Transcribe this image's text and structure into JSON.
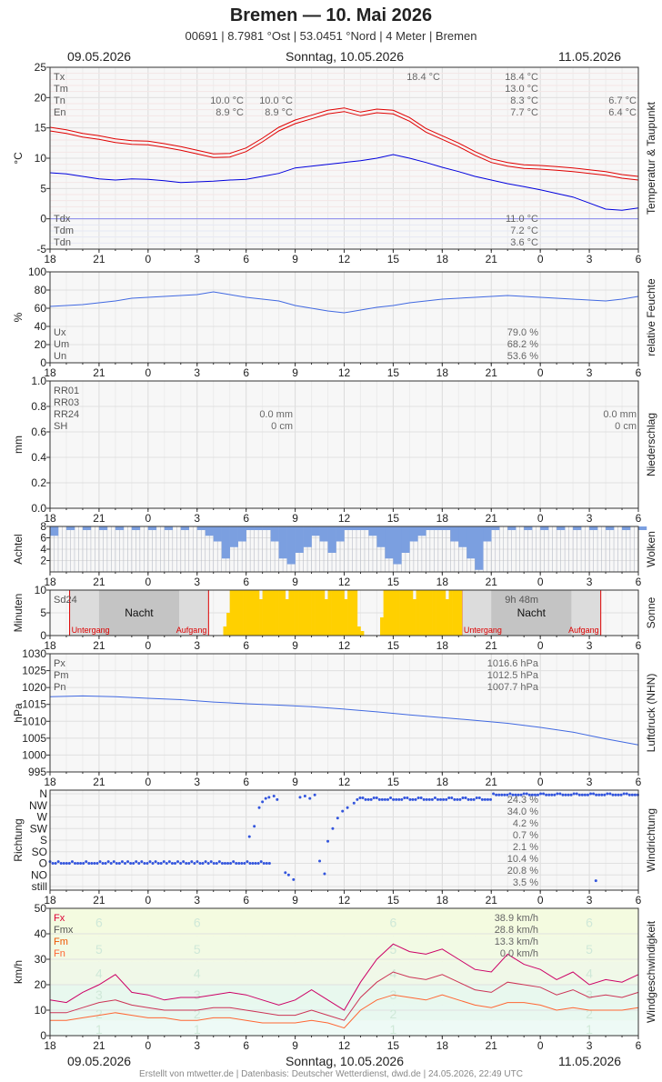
{
  "header": {
    "title": "Bremen  —  10. Mai 2026",
    "subtitle": "00691  |  8.7981 °Ost  |  53.0451 °Nord  |  4 Meter  |  Bremen",
    "date_left": "09.05.2026",
    "date_center": "Sonntag, 10.05.2026",
    "date_right": "11.05.2026"
  },
  "footer": "Erstellt von mtwetter.de | Datenbasis: Deutscher Wetterdienst, dwd.de | 24.05.2026, 22:49 UTC",
  "x_axis": {
    "tick_labels": [
      "18",
      "21",
      "0",
      "3",
      "6",
      "9",
      "12",
      "15",
      "18",
      "21",
      "0",
      "3",
      "6"
    ],
    "start_hour": 18,
    "end_hour": 54
  },
  "colors": {
    "temperature": "#e00000",
    "dewpoint": "#0000dd",
    "humidity": "#4169e1",
    "clouds": "#7b9fe0",
    "sun": "#ffd000",
    "pressure": "#4169e1",
    "wind_dir": "#3355dd",
    "gust_max": "#cc0066",
    "gust_mean": "#cc3355",
    "wind_mean": "#ff6633"
  },
  "chart_data": [
    {
      "id": "temp",
      "type": "line",
      "right_label": "Temperatur & Taupunkt",
      "ylabel": "°C",
      "ylim": [
        -5,
        25
      ],
      "yticks": [
        -5,
        0,
        5,
        10,
        15,
        20,
        25
      ],
      "legend": [
        "Tx",
        "Tm",
        "Tn",
        "En"
      ],
      "legend2": [
        "Tdx",
        "Tdm",
        "Tdn"
      ],
      "annotations": [
        {
          "text": "10.0 °C",
          "col": "day1a",
          "row": 2
        },
        {
          "text": "8.9 °C",
          "col": "day1a",
          "row": 3
        },
        {
          "text": "10.0 °C",
          "col": "day1b",
          "row": 2
        },
        {
          "text": "8.9 °C",
          "col": "day1b",
          "row": 3
        },
        {
          "text": "18.4 °C",
          "col": "day2max",
          "row": 0
        },
        {
          "text": "18.4 °C",
          "col": "day2",
          "row": 0
        },
        {
          "text": "13.0 °C",
          "col": "day2",
          "row": 1
        },
        {
          "text": "8.3 °C",
          "col": "day2",
          "row": 2
        },
        {
          "text": "7.7 °C",
          "col": "day2",
          "row": 3
        },
        {
          "text": "6.7 °C",
          "col": "day3",
          "row": 2
        },
        {
          "text": "6.4 °C",
          "col": "day3",
          "row": 3
        },
        {
          "text": "11.0 °C",
          "col": "day2",
          "row": 0,
          "bottom": true
        },
        {
          "text": "7.2 °C",
          "col": "day2",
          "row": 1,
          "bottom": true
        },
        {
          "text": "3.6 °C",
          "col": "day2",
          "row": 2,
          "bottom": true
        }
      ],
      "series": [
        {
          "name": "T",
          "x": [
            18,
            19,
            20,
            21,
            22,
            23,
            24,
            25,
            26,
            27,
            28,
            29,
            30,
            31,
            32,
            33,
            34,
            35,
            36,
            37,
            38,
            39,
            40,
            41,
            42,
            43,
            44,
            45,
            46,
            47,
            48,
            49,
            50,
            51,
            52,
            53,
            54
          ],
          "values": [
            14.8,
            14.4,
            13.8,
            13.4,
            12.9,
            12.6,
            12.5,
            12.1,
            11.6,
            11.0,
            10.4,
            10.5,
            11.4,
            13.0,
            14.8,
            16.0,
            16.8,
            17.6,
            18.0,
            17.3,
            17.8,
            17.6,
            16.4,
            14.6,
            13.4,
            12.2,
            10.8,
            9.6,
            9.0,
            8.6,
            8.5,
            8.3,
            8.1,
            7.8,
            7.5,
            7.0,
            6.7
          ]
        },
        {
          "name": "Td",
          "x": [
            18,
            19,
            20,
            21,
            22,
            23,
            24,
            25,
            26,
            27,
            28,
            29,
            30,
            31,
            32,
            33,
            34,
            35,
            36,
            37,
            38,
            39,
            40,
            41,
            42,
            43,
            44,
            45,
            46,
            47,
            48,
            49,
            50,
            51,
            52,
            53,
            54
          ],
          "values": [
            7.6,
            7.4,
            7.0,
            6.6,
            6.4,
            6.6,
            6.5,
            6.3,
            6.0,
            6.1,
            6.2,
            6.4,
            6.5,
            7.0,
            7.5,
            8.4,
            8.7,
            9.0,
            9.3,
            9.6,
            10.0,
            10.6,
            10.0,
            9.3,
            8.5,
            7.8,
            7.0,
            6.4,
            5.8,
            5.3,
            4.8,
            4.2,
            3.6,
            2.6,
            1.6,
            1.4,
            1.8
          ]
        }
      ]
    },
    {
      "id": "hum",
      "type": "line",
      "right_label": "relative Feuchte",
      "ylabel": "%",
      "ylim": [
        0,
        100
      ],
      "yticks": [
        0,
        20,
        40,
        60,
        80,
        100
      ],
      "legend": [
        "Ux",
        "Um",
        "Un"
      ],
      "annotations": [
        {
          "text": "79.0 %",
          "col": "day2",
          "row": 0,
          "bottom": true
        },
        {
          "text": "68.2 %",
          "col": "day2",
          "row": 1,
          "bottom": true
        },
        {
          "text": "53.6 %",
          "col": "day2",
          "row": 2,
          "bottom": true
        }
      ],
      "series": [
        {
          "name": "U",
          "x": [
            18,
            19,
            20,
            21,
            22,
            23,
            24,
            25,
            26,
            27,
            28,
            29,
            30,
            31,
            32,
            33,
            34,
            35,
            36,
            37,
            38,
            39,
            40,
            41,
            42,
            43,
            44,
            45,
            46,
            47,
            48,
            49,
            50,
            51,
            52,
            53,
            54
          ],
          "values": [
            62,
            63,
            64,
            66,
            68,
            71,
            72,
            73,
            74,
            75,
            78,
            75,
            72,
            70,
            68,
            63,
            60,
            57,
            55,
            58,
            61,
            63,
            66,
            68,
            70,
            71,
            72,
            73,
            74,
            73,
            72,
            71,
            70,
            69,
            68,
            70,
            73
          ]
        }
      ]
    },
    {
      "id": "rain",
      "type": "bar",
      "right_label": "Niederschlag",
      "ylabel": "mm",
      "ylim": [
        0,
        1
      ],
      "yticks": [
        0.0,
        0.2,
        0.4,
        0.6,
        0.8,
        1.0
      ],
      "legend": [
        "RR01",
        "RR03",
        "RR24",
        "SH"
      ],
      "annotations": [
        {
          "text": "0.0 mm",
          "col": "day1b",
          "row": 2
        },
        {
          "text": "0 cm",
          "col": "day1b",
          "row": 3
        },
        {
          "text": "0.0 mm",
          "col": "day3",
          "row": 2
        },
        {
          "text": "0 cm",
          "col": "day3",
          "row": 3
        }
      ]
    },
    {
      "id": "cloud",
      "type": "bar",
      "right_label": "Wolken",
      "ylabel": "Achtel",
      "ylim": [
        0,
        8
      ],
      "yticks": [
        2,
        4,
        6,
        8
      ],
      "x": [
        18.0,
        19.0,
        20.0,
        21.0,
        22.0,
        23.0,
        24.0,
        25.0,
        26.0,
        27.0,
        27.5,
        28.0,
        28.5,
        29.0,
        29.5,
        30.0,
        30.5,
        31.0,
        31.5,
        32.0,
        32.5,
        33.0,
        33.5,
        34.0,
        34.5,
        35.0,
        35.5,
        36.0,
        36.5,
        37.0,
        37.5,
        38.0,
        38.5,
        39.0,
        39.5,
        40.0,
        40.5,
        41.0,
        41.5,
        42.0,
        42.5,
        43.0,
        43.5,
        44.0,
        44.5,
        45.0,
        46.0,
        47.0,
        48.0,
        49.0,
        50.0,
        51.0,
        52.0,
        53.0,
        54.0
      ],
      "values": [
        7,
        8,
        8,
        8,
        8,
        8,
        8,
        8,
        8,
        8,
        7,
        6,
        3,
        5,
        6,
        8,
        8,
        8,
        6,
        3,
        2,
        4,
        5,
        7,
        6,
        4,
        6,
        8,
        8,
        8,
        7,
        5,
        3,
        2,
        4,
        6,
        7,
        8,
        8,
        8,
        6,
        5,
        3,
        1,
        6,
        8,
        8,
        8,
        8,
        8,
        8,
        8,
        8,
        8,
        8
      ]
    },
    {
      "id": "sun",
      "type": "bar",
      "right_label": "Sonne",
      "ylabel": "Minuten",
      "ylim": [
        0,
        10
      ],
      "yticks": [
        0,
        5,
        10
      ],
      "legend": [
        "Sd24"
      ],
      "night_label": "Nacht",
      "sunset_label": "Untergang",
      "sunrise_label": "Aufgang",
      "total": "9h 48m",
      "sun_x": [
        28.6,
        28.8,
        29.0,
        29.2,
        29.4,
        29.6,
        29.8,
        30.0,
        30.2,
        30.4,
        30.6,
        30.8,
        31.0,
        31.2,
        31.4,
        31.6,
        31.8,
        32.0,
        32.2,
        32.4,
        32.6,
        32.8,
        33.0,
        33.2,
        33.4,
        33.6,
        33.8,
        34.0,
        34.2,
        34.4,
        34.6,
        34.8,
        35.0,
        35.2,
        35.4,
        35.6,
        35.8,
        36.0,
        36.2,
        36.4,
        36.6,
        36.8,
        37.0,
        38.2,
        38.4,
        38.6,
        38.8,
        39.0,
        39.2,
        39.4,
        39.6,
        39.8,
        40.0,
        40.2,
        40.4,
        40.6,
        40.8,
        41.0,
        41.2,
        41.4,
        41.6,
        41.8,
        42.0,
        42.2,
        42.4,
        42.6,
        42.8,
        43.0
      ],
      "sun_values": [
        2,
        5,
        10,
        10,
        10,
        10,
        10,
        10,
        10,
        10,
        10,
        8,
        10,
        10,
        10,
        10,
        10,
        10,
        10,
        8,
        10,
        10,
        10,
        10,
        10,
        10,
        10,
        10,
        10,
        10,
        10,
        8,
        10,
        10,
        10,
        10,
        10,
        8,
        10,
        10,
        10,
        2,
        1,
        4,
        10,
        10,
        10,
        10,
        10,
        10,
        10,
        10,
        10,
        8,
        10,
        10,
        10,
        10,
        10,
        10,
        10,
        10,
        10,
        8,
        10,
        10,
        10,
        10
      ]
    },
    {
      "id": "press",
      "type": "line",
      "right_label": "Luftdruck (NHN)",
      "ylabel": "hPa",
      "ylim": [
        995,
        1030
      ],
      "yticks": [
        995,
        1000,
        1005,
        1010,
        1015,
        1020,
        1025,
        1030
      ],
      "legend": [
        "Px",
        "Pm",
        "Pn"
      ],
      "annotations": [
        {
          "text": "1016.6 hPa",
          "col": "day2",
          "row": 0
        },
        {
          "text": "1012.5 hPa",
          "col": "day2",
          "row": 1
        },
        {
          "text": "1007.7 hPa",
          "col": "day2",
          "row": 2
        }
      ],
      "series": [
        {
          "name": "P",
          "x": [
            18,
            20,
            22,
            24,
            26,
            28,
            30,
            32,
            34,
            36,
            38,
            40,
            42,
            44,
            46,
            48,
            50,
            52,
            54
          ],
          "values": [
            1017.3,
            1017.5,
            1017.3,
            1016.8,
            1016.4,
            1015.7,
            1015.2,
            1014.8,
            1014.3,
            1013.6,
            1012.8,
            1011.9,
            1011.1,
            1010.3,
            1009.4,
            1008.2,
            1006.8,
            1004.8,
            1003.0
          ]
        }
      ]
    },
    {
      "id": "wdir",
      "type": "scatter",
      "right_label": "Windrichtung",
      "ylabel": "Richtung",
      "categories": [
        "still",
        "NO",
        "O",
        "SO",
        "S",
        "SW",
        "W",
        "NW",
        "N"
      ],
      "annotations": [
        {
          "text": "24.3 %",
          "col": "day2",
          "row": 0
        },
        {
          "text": "34.0 %",
          "col": "day2",
          "row": 1
        },
        {
          "text": "4.2 %",
          "col": "day2",
          "row": 2
        },
        {
          "text": "0.7 %",
          "col": "day2",
          "row": 3
        },
        {
          "text": "2.1 %",
          "col": "day2",
          "row": 4
        },
        {
          "text": "10.4 %",
          "col": "day2",
          "row": 5
        },
        {
          "text": "20.8 %",
          "col": "day2",
          "row": 6
        },
        {
          "text": "3.5 %",
          "col": "day2",
          "row": 7
        }
      ]
    },
    {
      "id": "wind",
      "type": "line",
      "right_label": "Windgeschwindigkeit",
      "ylabel": "km/h",
      "ylim": [
        0,
        50
      ],
      "yticks": [
        0,
        10,
        20,
        30,
        40,
        50
      ],
      "legend": [
        "Fx",
        "Fmx",
        "Fm",
        "Fn"
      ],
      "beaufort": [
        "1",
        "2",
        "3",
        "4",
        "5",
        "6"
      ],
      "annotations": [
        {
          "text": "38.9 km/h",
          "col": "day2",
          "row": 0
        },
        {
          "text": "28.8 km/h",
          "col": "day2",
          "row": 1
        },
        {
          "text": "13.3 km/h",
          "col": "day2",
          "row": 2
        },
        {
          "text": "0.0 km/h",
          "col": "day2",
          "row": 3
        }
      ],
      "series": [
        {
          "name": "Fx",
          "x": [
            18,
            19,
            20,
            21,
            22,
            23,
            24,
            25,
            26,
            27,
            28,
            29,
            30,
            31,
            32,
            33,
            34,
            35,
            36,
            37,
            38,
            39,
            40,
            41,
            42,
            43,
            44,
            45,
            46,
            47,
            48,
            49,
            50,
            51,
            52,
            53,
            54
          ],
          "values": [
            14,
            13,
            17,
            20,
            24,
            17,
            16,
            14,
            15,
            15,
            16,
            17,
            16,
            14,
            12,
            14,
            18,
            14,
            10,
            21,
            30,
            36,
            33,
            32,
            34,
            30,
            26,
            25,
            32,
            28,
            26,
            22,
            25,
            20,
            22,
            21,
            24
          ]
        },
        {
          "name": "Fmx",
          "x": [
            18,
            19,
            20,
            21,
            22,
            23,
            24,
            25,
            26,
            27,
            28,
            29,
            30,
            31,
            32,
            33,
            34,
            35,
            36,
            37,
            38,
            39,
            40,
            41,
            42,
            43,
            44,
            45,
            46,
            47,
            48,
            49,
            50,
            51,
            52,
            53,
            54
          ],
          "values": [
            9,
            9,
            11,
            13,
            14,
            12,
            11,
            10,
            10,
            10,
            11,
            11,
            10,
            9,
            8,
            8,
            10,
            8,
            6,
            15,
            21,
            25,
            23,
            22,
            24,
            21,
            18,
            17,
            21,
            20,
            19,
            16,
            18,
            15,
            16,
            15,
            17
          ]
        },
        {
          "name": "Fm",
          "x": [
            18,
            19,
            20,
            21,
            22,
            23,
            24,
            25,
            26,
            27,
            28,
            29,
            30,
            31,
            32,
            33,
            34,
            35,
            36,
            37,
            38,
            39,
            40,
            41,
            42,
            43,
            44,
            45,
            46,
            47,
            48,
            49,
            50,
            51,
            52,
            53,
            54
          ],
          "values": [
            6,
            6,
            7,
            8,
            9,
            8,
            7,
            7,
            6,
            6,
            7,
            7,
            6,
            5,
            5,
            5,
            6,
            5,
            3,
            10,
            14,
            16,
            15,
            14,
            16,
            14,
            12,
            11,
            13,
            13,
            12,
            10,
            11,
            10,
            10,
            10,
            11
          ]
        }
      ]
    }
  ]
}
